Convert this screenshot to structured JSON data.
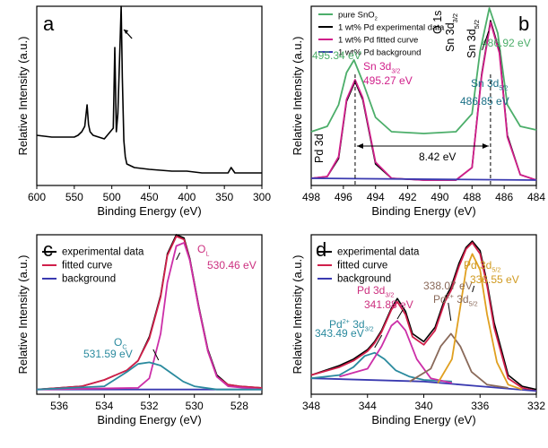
{
  "chart_data": [
    {
      "id": "a",
      "panel_label": "a",
      "type": "line",
      "xlabel": "Binding Energy (eV)",
      "ylabel": "Relative Intensity (a.u.)",
      "xlim": [
        600,
        300
      ],
      "xticks": [
        600,
        550,
        500,
        450,
        400,
        350,
        300
      ],
      "ylim": [
        0,
        1.0
      ],
      "grid": false,
      "series": [
        {
          "color": "#000000",
          "x": [
            600,
            580,
            560,
            550,
            545,
            540,
            536,
            533,
            531,
            529,
            525,
            510,
            498,
            496,
            494,
            492,
            489,
            487.5,
            486,
            484,
            482,
            480,
            470,
            450,
            420,
            400,
            380,
            360,
            345,
            341,
            336,
            320,
            300
          ],
          "y": [
            0.28,
            0.27,
            0.27,
            0.27,
            0.28,
            0.3,
            0.33,
            0.45,
            0.34,
            0.3,
            0.28,
            0.26,
            0.32,
            0.77,
            0.3,
            0.4,
            0.8,
            1.0,
            0.6,
            0.25,
            0.16,
            0.12,
            0.1,
            0.09,
            0.08,
            0.08,
            0.07,
            0.07,
            0.07,
            0.1,
            0.07,
            0.07,
            0.07
          ]
        }
      ],
      "annotations": [
        {
          "text": "O 1s"
        },
        {
          "text": "Sn 3d",
          "sub": "3/2"
        },
        {
          "text": "Sn 3d",
          "sub": "5/2"
        },
        {
          "text": "Pd 3d"
        }
      ]
    },
    {
      "id": "b",
      "panel_label": "b",
      "type": "line",
      "xlabel": "Binding Energy (eV)",
      "ylabel": "Relative Intensity (a.u.)",
      "xlim": [
        498,
        484
      ],
      "xticks": [
        498,
        496,
        494,
        492,
        490,
        488,
        486,
        484
      ],
      "ylim": [
        0,
        1.0
      ],
      "grid": false,
      "legend_position": "top-left",
      "series": [
        {
          "name": "pure SnO",
          "name_sub": "2",
          "color": "#4cae6a",
          "x": [
            498,
            497,
            496.3,
            495.8,
            495.34,
            494.8,
            494,
            493,
            491,
            489,
            488,
            487.5,
            486.92,
            486.4,
            485.8,
            485,
            484
          ],
          "y": [
            0.3,
            0.33,
            0.45,
            0.63,
            0.7,
            0.58,
            0.38,
            0.3,
            0.29,
            0.3,
            0.4,
            0.75,
            0.99,
            0.85,
            0.45,
            0.33,
            0.31
          ]
        },
        {
          "name": "1 wt% Pd experimental data",
          "color": "#000000",
          "x": [
            498,
            497,
            496.3,
            495.8,
            495.27,
            494.8,
            494,
            493,
            491,
            489,
            488,
            487.4,
            486.85,
            486.3,
            485.8,
            485,
            484
          ],
          "y": [
            0.04,
            0.05,
            0.15,
            0.47,
            0.58,
            0.48,
            0.12,
            0.04,
            0.03,
            0.03,
            0.1,
            0.62,
            0.92,
            0.75,
            0.28,
            0.06,
            0.03
          ]
        },
        {
          "name": "1 wt% Pd fitted curve",
          "color": "#d01f8a",
          "x": [
            498,
            497,
            496.3,
            495.8,
            495.27,
            494.8,
            494,
            493,
            491,
            489,
            488,
            487.4,
            486.85,
            486.3,
            485.8,
            485,
            484
          ],
          "y": [
            0.04,
            0.05,
            0.16,
            0.48,
            0.59,
            0.49,
            0.13,
            0.04,
            0.03,
            0.03,
            0.1,
            0.61,
            0.91,
            0.74,
            0.27,
            0.06,
            0.03
          ]
        },
        {
          "name": "1 wt% Pd background",
          "color": "#3a3ab0",
          "x": [
            498,
            484
          ],
          "y": [
            0.04,
            0.03
          ]
        }
      ],
      "annotations": [
        {
          "text": "495.34 eV",
          "color": "#4cae6a"
        },
        {
          "text": "Sn 3d",
          "sub": "3/2",
          "color": "#d01f8a"
        },
        {
          "text": "495.27 eV",
          "color": "#d01f8a"
        },
        {
          "text": "486.92 eV",
          "color": "#4cae6a"
        },
        {
          "text": "Sn 3d",
          "sub": "5/2",
          "color": "#1a6f86"
        },
        {
          "text": "486.85 eV",
          "color": "#1a6f86"
        },
        {
          "text": "8.42 eV",
          "color": "#000000"
        }
      ]
    },
    {
      "id": "c",
      "panel_label": "c",
      "type": "line",
      "xlabel": "Binding Energy (eV)",
      "ylabel": "Relative Intensity (a.u.)",
      "xlim": [
        537,
        527
      ],
      "xticks": [
        536,
        534,
        532,
        530,
        528
      ],
      "ylim": [
        0,
        1.0
      ],
      "grid": false,
      "legend_position": "top-left",
      "series": [
        {
          "name": "experimental data",
          "color": "#000000",
          "x": [
            537,
            535,
            534,
            533,
            532.5,
            532,
            531.5,
            531.2,
            530.8,
            530.46,
            530.2,
            529.8,
            529.4,
            529,
            528.5,
            528,
            527
          ],
          "y": [
            0.03,
            0.05,
            0.09,
            0.15,
            0.21,
            0.36,
            0.62,
            0.88,
            1.0,
            0.98,
            0.85,
            0.55,
            0.28,
            0.12,
            0.06,
            0.05,
            0.04
          ]
        },
        {
          "name": "fitted curve",
          "color": "#d01f4a",
          "x": [
            537,
            535,
            534,
            533,
            532.5,
            532,
            531.5,
            531.2,
            530.8,
            530.46,
            530.2,
            529.8,
            529.4,
            529,
            528.5,
            528,
            527
          ],
          "y": [
            0.03,
            0.05,
            0.09,
            0.15,
            0.21,
            0.35,
            0.61,
            0.87,
            0.99,
            0.97,
            0.84,
            0.54,
            0.27,
            0.11,
            0.06,
            0.05,
            0.04
          ]
        },
        {
          "name": "background",
          "color": "#3a3ab0",
          "x": [
            537,
            527
          ],
          "y": [
            0.03,
            0.03
          ]
        },
        {
          "name": "",
          "color": "#cc2fa8",
          "x": [
            537,
            532.5,
            532,
            531.5,
            531.2,
            530.8,
            530.46,
            530.2,
            529.8,
            529.4,
            529,
            528.5,
            527
          ],
          "y": [
            0.03,
            0.04,
            0.1,
            0.38,
            0.7,
            0.93,
            0.95,
            0.84,
            0.54,
            0.27,
            0.11,
            0.05,
            0.03
          ]
        },
        {
          "name": "",
          "color": "#2a8a9e",
          "x": [
            537,
            534,
            533,
            532.5,
            532,
            531.5,
            531,
            530.5,
            530,
            529,
            527
          ],
          "y": [
            0.03,
            0.05,
            0.14,
            0.19,
            0.2,
            0.18,
            0.13,
            0.08,
            0.05,
            0.03,
            0.03
          ]
        }
      ],
      "annotations": [
        {
          "text": "O",
          "sub": "L",
          "color": "#cc2f7f"
        },
        {
          "text": "530.46 eV",
          "color": "#cc2f7f"
        },
        {
          "text": "O",
          "sub": "C",
          "color": "#2a8a9e"
        },
        {
          "text": "531.59 eV",
          "color": "#2a8a9e"
        }
      ]
    },
    {
      "id": "d",
      "panel_label": "d",
      "type": "line",
      "xlabel": "Binding Energy (eV)",
      "ylabel": "Relative Intensity (a.u.)",
      "xlim": [
        348,
        332
      ],
      "xticks": [
        348,
        344,
        340,
        336,
        332
      ],
      "ylim": [
        0,
        1.0
      ],
      "grid": false,
      "legend_position": "top-left",
      "series": [
        {
          "name": "experimental data",
          "color": "#000000",
          "x": [
            348,
            346,
            345,
            344,
            343.5,
            343,
            342.3,
            341.88,
            341.3,
            340.8,
            340,
            339.2,
            338.5,
            338.07,
            337.5,
            337,
            336.55,
            336,
            335.5,
            335,
            334,
            333,
            332
          ],
          "y": [
            0.12,
            0.18,
            0.22,
            0.28,
            0.33,
            0.4,
            0.54,
            0.6,
            0.52,
            0.38,
            0.33,
            0.42,
            0.6,
            0.67,
            0.82,
            0.92,
            0.96,
            0.9,
            0.7,
            0.45,
            0.12,
            0.05,
            0.03
          ]
        },
        {
          "name": "fitted curve",
          "color": "#d01f4a",
          "x": [
            348,
            346,
            345,
            344,
            343.5,
            343,
            342.3,
            341.88,
            341.3,
            340.8,
            340,
            339.2,
            338.5,
            338.07,
            337.5,
            337,
            336.55,
            336,
            335.5,
            335,
            334,
            333,
            332
          ],
          "y": [
            0.12,
            0.17,
            0.21,
            0.27,
            0.32,
            0.39,
            0.53,
            0.58,
            0.5,
            0.36,
            0.31,
            0.4,
            0.58,
            0.65,
            0.8,
            0.91,
            0.95,
            0.88,
            0.68,
            0.42,
            0.1,
            0.04,
            0.02
          ]
        },
        {
          "name": "background",
          "color": "#3a3ab0",
          "x": [
            348,
            340,
            336,
            332
          ],
          "y": [
            0.1,
            0.08,
            0.05,
            0.02
          ]
        },
        {
          "name": "",
          "color": "#2a8a9e",
          "x": [
            348,
            346,
            345,
            344.2,
            343.49,
            342.8,
            342,
            341,
            340,
            338
          ],
          "y": [
            0.1,
            0.12,
            0.17,
            0.24,
            0.26,
            0.22,
            0.15,
            0.11,
            0.09,
            0.08
          ]
        },
        {
          "name": "",
          "color": "#cc2fa8",
          "x": [
            346,
            344,
            343,
            342.3,
            341.88,
            341.3,
            340.5,
            339.5,
            338
          ],
          "y": [
            0.11,
            0.16,
            0.3,
            0.43,
            0.46,
            0.4,
            0.22,
            0.1,
            0.07
          ]
        },
        {
          "name": "",
          "color": "#8a6a5a",
          "x": [
            341,
            339.5,
            338.8,
            338.07,
            337.4,
            336.6,
            335.5,
            334
          ],
          "y": [
            0.08,
            0.16,
            0.3,
            0.38,
            0.3,
            0.14,
            0.06,
            0.04
          ]
        },
        {
          "name": "",
          "color": "#e0a020",
          "x": [
            339,
            338,
            337.4,
            337,
            336.55,
            336,
            335.5,
            334.8,
            334,
            333
          ],
          "y": [
            0.07,
            0.22,
            0.55,
            0.78,
            0.88,
            0.78,
            0.5,
            0.2,
            0.06,
            0.03
          ]
        }
      ],
      "annotations": [
        {
          "text": "Pd 3d",
          "sub": "3/2",
          "color": "#cc2f7f"
        },
        {
          "text": "341.88 eV",
          "color": "#cc2f7f"
        },
        {
          "text": "Pd",
          "sup": "2+",
          "tail": " 3d",
          "sub": "3/2",
          "color": "#2a8a9e"
        },
        {
          "text": "343.49 eV",
          "color": "#2a8a9e"
        },
        {
          "text": "338.07 eV",
          "color": "#8a6a5a"
        },
        {
          "text": "Pd",
          "sup": "2+",
          "tail": " 3d",
          "sub": "5/2",
          "color": "#8a6a5a"
        },
        {
          "text": "Pd 3d",
          "sub": "5/2",
          "color": "#d09a20"
        },
        {
          "text": "336.55 eV",
          "color": "#d09a20"
        }
      ]
    }
  ]
}
